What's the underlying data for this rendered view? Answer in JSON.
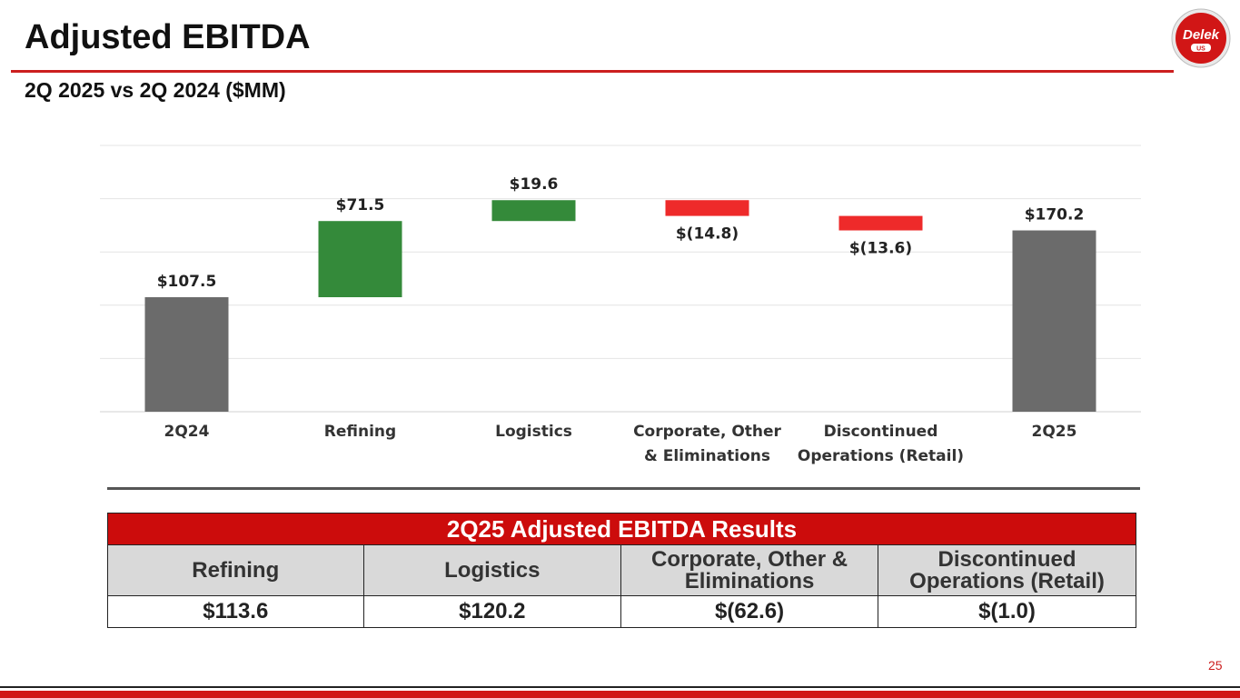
{
  "header": {
    "title": "Adjusted EBITDA",
    "subtitle": "2Q 2025 vs 2Q 2024 ($MM)"
  },
  "logo": {
    "text": "Delek",
    "sub": "US",
    "color": "#d11616"
  },
  "chart_data": {
    "type": "waterfall",
    "categories": [
      [
        "2Q24"
      ],
      [
        "Refining"
      ],
      [
        "Logistics"
      ],
      [
        "Corporate, Other",
        "&  Eliminations"
      ],
      [
        "Discontinued",
        "Operations (Retail)"
      ],
      [
        "2Q25"
      ]
    ],
    "values": [
      107.5,
      71.5,
      19.6,
      -14.8,
      -13.6,
      170.2
    ],
    "kinds": [
      "total",
      "delta",
      "delta",
      "delta",
      "delta",
      "total"
    ],
    "labels": [
      "$107.5",
      "$71.5",
      "$19.6",
      "$(14.8)",
      "$(13.6)",
      "$170.2"
    ],
    "ylim": [
      0,
      250
    ],
    "gridlines": [
      0,
      50,
      100,
      150,
      200,
      250
    ],
    "colors": {
      "total": "#6b6b6b",
      "increase": "#348a3a",
      "decrease": "#ee2a2a"
    }
  },
  "results_table": {
    "title": "2Q25 Adjusted EBITDA Results",
    "columns": [
      [
        "Refining"
      ],
      [
        "Logistics"
      ],
      [
        "Corporate, Other &",
        "Eliminations"
      ],
      [
        "Discontinued",
        "Operations (Retail)"
      ]
    ],
    "values": [
      "$113.6",
      "$120.2",
      "$(62.6)",
      "$(1.0)"
    ]
  },
  "page_number": "25"
}
